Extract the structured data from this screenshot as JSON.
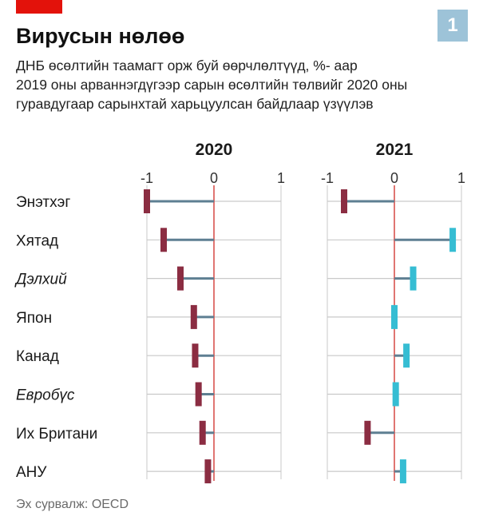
{
  "header": {
    "title": "Вирусын нөлөө",
    "badge": "1",
    "subtitle_lines": [
      "ДНБ өсөлтийн таамагт орж буй өөрчлөлтүүд, %- аар",
      "2019 оны арваннэгдүгээр сарын өсөлтийн төлвийг 2020 оны",
      "гуравдугаар сарынхтай харьцуулсан байдлаар үзүүлэв"
    ]
  },
  "source": "Эх сурвалж: OECD",
  "colors": {
    "accent_red": "#e3120b",
    "negative": "#8b2d42",
    "positive": "#36bdd3",
    "stem": "#5e7f92",
    "zero_line": "#d9534f",
    "grid": "#c9c9c9",
    "badge": "#9dc3d8"
  },
  "chart_data": {
    "type": "bar",
    "categories": [
      "Энэтхэг",
      "Хятад",
      "Дэлхий",
      "Япон",
      "Канад",
      "Евробүс",
      "Их Британи",
      "АНУ"
    ],
    "italic_categories": [
      "Дэлхий",
      "Евробүс"
    ],
    "xlim": [
      -1,
      1
    ],
    "xticks": [
      "-1",
      "0",
      "1"
    ],
    "grid": true,
    "panels": [
      {
        "title": "2020",
        "values": [
          -1.0,
          -0.75,
          -0.5,
          -0.3,
          -0.28,
          -0.23,
          -0.17,
          -0.09
        ]
      },
      {
        "title": "2021",
        "values": [
          -0.75,
          0.87,
          0.28,
          0.0,
          0.18,
          0.02,
          -0.4,
          0.13
        ]
      }
    ]
  }
}
